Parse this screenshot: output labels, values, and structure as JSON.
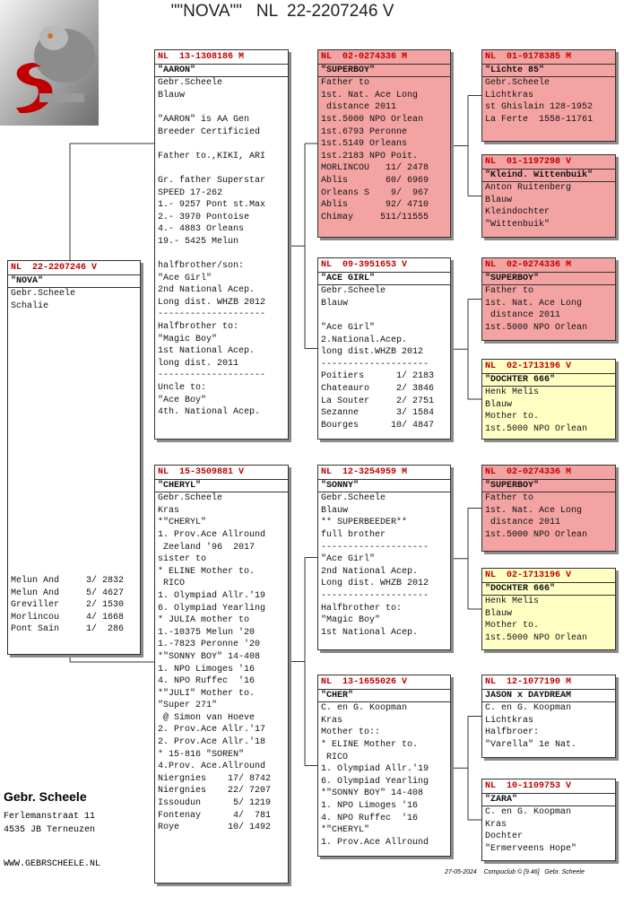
{
  "title": "\"\"NOVA\"\"   NL  22-2207246 V",
  "nodes": [
    {
      "ring": "NL  22-2207246 V",
      "name": "\"NOVA\"",
      "fill": "#ffffff",
      "blocks": [
        [
          "Gebr.Scheele",
          "Schalie"
        ]
      ],
      "results": [
        "Melun And     3/ 2832",
        "Melun And     5/ 4627",
        "Greviller     2/ 1530",
        "Morlincou     4/ 1668",
        "Pont Sain     1/  286"
      ]
    },
    {
      "ring": "NL  13-1308186 M",
      "name": "\"AARON\"",
      "fill": "#ffffff",
      "blocks": [
        [
          "Gebr.Scheele",
          "Blauw"
        ],
        [
          "\"AARON\" is AA Gen",
          "Breeder Certificied"
        ],
        [
          "Father to.,KIKI, ARI"
        ],
        [
          "Gr. father Superstar",
          "SPEED 17-262",
          "1.- 9257 Pont st.Max",
          "2.- 3970 Pontoise",
          "4.- 4883 Orleans",
          "19.- 5425 Melun"
        ],
        [
          "halfbrother/son:",
          "\"Ace Girl\"",
          "2nd National Acep.",
          "Long dist. WHZB 2012",
          "--------------------",
          "Halfbrother to:",
          "\"Magic Boy\"",
          "1st National Acep.",
          "long dist. 2011",
          "--------------------",
          "Uncle to:",
          "\"Ace Boy\"",
          "4th. National Acep."
        ]
      ]
    },
    {
      "ring": "NL  15-3509881 V",
      "name": "\"CHERYL\"",
      "fill": "#ffffff",
      "blocks": [
        [
          "Gebr.Scheele",
          "Kras",
          "*\"CHERYL\"",
          "1. Prov.Ace Allround",
          " Zeeland '96  2017",
          "sister to",
          "* ELINE Mother to.",
          " RICO",
          "1. Olympiad Allr.'19",
          "6. Olympiad Yearling",
          "* JULIA mother to",
          "1.-10375 Melun '20",
          "1.-7823 Peronne '20",
          "*\"SONNY BOY\" 14-408",
          "1. NPO Limoges '16",
          "4. NPO Ruffec  '16",
          "*\"JULI\" Mother to.",
          "\"Super 271\"",
          " @ Simon van Hoeve",
          "2. Prov.Ace Allr.'17",
          "2. Prov.Ace Allr.'18",
          "* 15-816 \"SOREN\"",
          "4.Prov. Ace.Allround",
          "Niergnies    17/ 8742",
          "Niergnies    22/ 7207",
          "Issoudun      5/ 1219",
          "Fontenay      4/  781",
          "Roye         10/ 1492"
        ]
      ]
    },
    {
      "ring": "NL  02-0274336 M",
      "name": "\"SUPERBOY\"",
      "fill": "#f4a3a3",
      "blocks": [
        [
          "Father to",
          "1st. Nat. Ace Long",
          " distance 2011",
          "1st.5000 NPO Orlean",
          "1st.6793 Peronne",
          "1st.5149 Orleans",
          "1st.2183 NPO Poit.",
          "MORLINCOU   11/ 2478",
          "Ablis       60/ 6969",
          "Orleans S    9/  967",
          "Ablis       92/ 4710",
          "Chimay     511/11555"
        ]
      ]
    },
    {
      "ring": "NL  09-3951653 V",
      "name": "\"ACE GIRL\"",
      "fill": "#ffffff",
      "blocks": [
        [
          "Gebr.Scheele",
          "Blauw"
        ],
        [
          "\"Ace Girl\"",
          "2.National.Acep.",
          "long dist.WHZB 2012",
          "--------------------",
          "Poitiers      1/ 2183",
          "Chateauro     2/ 3846",
          "La Souter     2/ 2751",
          "Sezanne       3/ 1584",
          "Bourges      10/ 4847"
        ]
      ]
    },
    {
      "ring": "NL  12-3254959 M",
      "name": "\"SONNY\"",
      "fill": "#ffffff",
      "blocks": [
        [
          "Gebr.Scheele",
          "Blauw",
          "** SUPERBEEDER**",
          "full brother",
          "--------------------",
          "\"Ace Girl\"",
          "2nd National Acep.",
          "Long dist. WHZB 2012",
          "--------------------",
          "Halfbrother to:",
          "\"Magic Boy\"",
          "1st National Acep."
        ]
      ]
    },
    {
      "ring": "NL  13-1655026 V",
      "name": "\"CHER\"",
      "fill": "#ffffff",
      "blocks": [
        [
          "C. en G. Koopman",
          "Kras",
          "Mother to::",
          "* ELINE Mother to.",
          " RICO",
          "1. Olympiad Allr.'19",
          "6. Olympiad Yearling",
          "*\"SONNY BOY\" 14-408",
          "1. NPO Limoges '16",
          "4. NPO Ruffec  '16",
          "*\"CHERYL\"",
          "1. Prov.Ace Allround"
        ]
      ]
    },
    {
      "ring": "NL  01-0178385 M",
      "name": "\"Lichte 85\"",
      "fill": "#f4a3a3",
      "blocks": [
        [
          "Gebr.Scheele",
          "Lichtkras",
          "st Ghislain 128-1952",
          "La Ferte  1558-11761"
        ]
      ]
    },
    {
      "ring": "NL  01-1197298 V",
      "name": "\"Kleind. Wittenbuik\"",
      "fill": "#f4a3a3",
      "blocks": [
        [
          "Anton Ruitenberg",
          "Blauw",
          "Kleindochter",
          "\"Wittenbuik\""
        ]
      ]
    },
    {
      "ring": "NL  02-0274336 M",
      "name": "\"SUPERBOY\"",
      "fill": "#f4a3a3",
      "blocks": [
        [
          "Father to",
          "1st. Nat. Ace Long",
          " distance 2011",
          "1st.5000 NPO Orlean"
        ]
      ]
    },
    {
      "ring": "NL  02-1713196 V",
      "name": "\"DOCHTER 666\"",
      "fill": "#ffffc4",
      "blocks": [
        [
          "Henk Melis",
          "Blauw",
          "Mother to.",
          "1st.5000 NPO Orlean"
        ]
      ]
    },
    {
      "ring": "NL  02-0274336 M",
      "name": "\"SUPERBOY\"",
      "fill": "#f4a3a3",
      "blocks": [
        [
          "Father to",
          "1st. Nat. Ace Long",
          " distance 2011",
          "1st.5000 NPO Orlean"
        ]
      ]
    },
    {
      "ring": "NL  02-1713196 V",
      "name": "\"DOCHTER 666\"",
      "fill": "#ffffc4",
      "blocks": [
        [
          "Henk Melis",
          "Blauw",
          "Mother to.",
          "1st.5000 NPO Orlean"
        ]
      ]
    },
    {
      "ring": "NL  12-1077190 M",
      "name": "JASON x DAYDREAM",
      "fill": "#ffffff",
      "blocks": [
        [
          "C. en G. Koopman",
          "Lichtkras",
          "Halfbroer:",
          "\"Varella\" 1e Nat."
        ]
      ]
    },
    {
      "ring": "NL  10-1109753 V",
      "name": "\"ZARA\"",
      "fill": "#ffffff",
      "blocks": [
        [
          "C. en G. Koopman",
          "Kras",
          "Dochter",
          "\"Ermerveens Hope\""
        ]
      ]
    }
  ],
  "owner": {
    "name": "Gebr. Scheele",
    "address": [
      "Ferlemanstraat 11",
      "4535 JB  Terneuzen"
    ],
    "website": "WWW.GEBRSCHEELE.NL"
  },
  "footer": "27-05-2024    Compuclub © [9.46]   Gebr. Scheele"
}
